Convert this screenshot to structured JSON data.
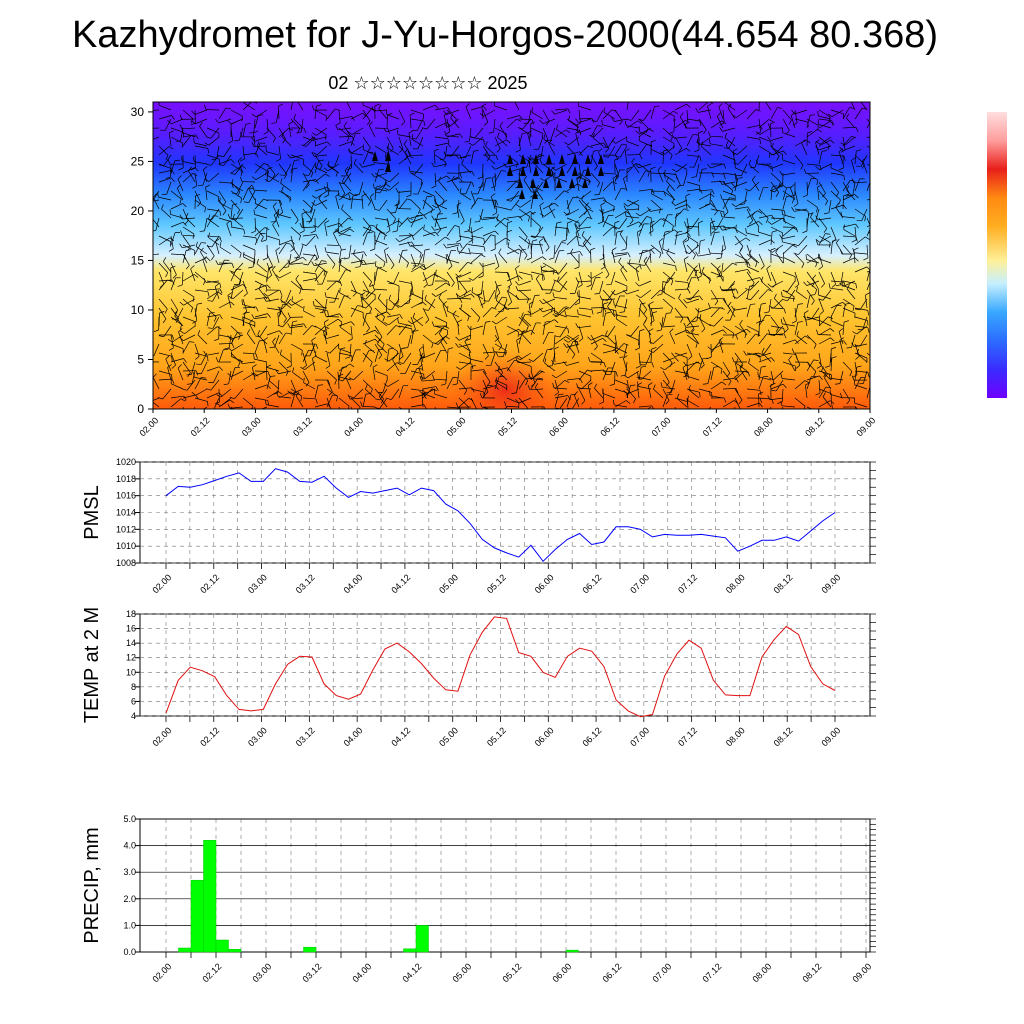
{
  "page": {
    "title": "Kazhydromet for J-Yu-Horgos-2000(44.654 80.368)",
    "subtitle": "02 ☆☆☆☆☆☆☆☆ 2025"
  },
  "colors": {
    "pmsl_line": "#0000ff",
    "temp_line": "#e01010",
    "precip_bar": "#00ff00",
    "colorbar": [
      "#6e00ff",
      "#5a1cff",
      "#3030ff",
      "#2c6cff",
      "#38a8ff",
      "#63d1ff",
      "#c5efff",
      "#fff099",
      "#ffd34d",
      "#ffae21",
      "#ff8a12",
      "#ff5a0a",
      "#e8201a",
      "#ff9d9d",
      "#ffdede"
    ]
  },
  "chart_data": [
    {
      "id": "profile",
      "type": "heatmap",
      "title": "",
      "x_tick_labels": [
        "02.00",
        "02.12",
        "03.00",
        "03.12",
        "04.00",
        "04.12",
        "05.00",
        "05.12",
        "06.00",
        "06.12",
        "07.00",
        "07.12",
        "08.00",
        "08.12",
        "09.00"
      ],
      "y_ticks": [
        0,
        5,
        10,
        15,
        20,
        25,
        30
      ],
      "ylim": [
        0,
        31
      ],
      "colorbar_labels": [],
      "note_visible": "temperature colour field with wind barbs, no printed values"
    },
    {
      "id": "pmsl",
      "type": "line",
      "ylabel": "PMSL",
      "ylim": [
        1008,
        1020
      ],
      "y_ticks": [
        1008,
        1010,
        1012,
        1014,
        1016,
        1018,
        1020
      ],
      "x_tick_labels": [
        "02.00",
        "02.12",
        "03.00",
        "03.12",
        "04.00",
        "04.12",
        "05.00",
        "05.12",
        "06.00",
        "06.12",
        "07.00",
        "07.12",
        "08.00",
        "08.12",
        "09.00"
      ],
      "x": [
        0,
        3,
        6,
        9,
        12,
        15,
        18,
        21,
        24,
        27,
        30,
        33,
        36,
        39,
        42,
        45,
        48,
        51,
        54,
        57,
        60,
        63,
        66,
        69,
        72,
        75,
        78,
        81,
        84,
        87,
        90,
        93,
        96,
        99,
        102,
        105,
        108,
        111,
        114,
        117,
        120,
        123,
        126,
        129,
        132,
        135,
        138,
        141,
        144,
        147,
        150,
        153,
        156,
        159,
        162,
        165
      ],
      "series": [
        {
          "values": [
            1016.0,
            1017.1,
            1017.0,
            1017.3,
            1017.8,
            1018.3,
            1018.7,
            1017.7,
            1017.7,
            1019.2,
            1018.8,
            1017.7,
            1017.6,
            1018.3,
            1016.9,
            1015.8,
            1016.5,
            1016.3,
            1016.6,
            1016.9,
            1016.1,
            1016.9,
            1016.6,
            1015.0,
            1014.2,
            1012.7,
            1010.8,
            1009.8,
            1009.2,
            1008.7,
            1010.1,
            1008.2,
            1009.6,
            1010.8,
            1011.5,
            1010.2,
            1010.5,
            1012.3,
            1012.3,
            1012.0,
            1011.1,
            1011.4,
            1011.3,
            1011.3,
            1011.4,
            1011.2,
            1011.0,
            1009.4,
            1010.0,
            1010.7,
            1010.7,
            1011.1,
            1010.6,
            1011.8,
            1013.0,
            1014.0
          ]
        }
      ]
    },
    {
      "id": "temp",
      "type": "line",
      "ylabel": "TEMP at 2 M",
      "ylim": [
        4,
        18
      ],
      "y_ticks": [
        4,
        6,
        8,
        10,
        12,
        14,
        16,
        18
      ],
      "x_tick_labels": [
        "02.00",
        "02.12",
        "03.00",
        "03.12",
        "04.00",
        "04.12",
        "05.00",
        "05.12",
        "06.00",
        "06.12",
        "07.00",
        "07.12",
        "08.00",
        "08.12",
        "09.00"
      ],
      "x": [
        0,
        3,
        6,
        9,
        12,
        15,
        18,
        21,
        24,
        27,
        30,
        33,
        36,
        39,
        42,
        45,
        48,
        51,
        54,
        57,
        60,
        63,
        66,
        69,
        72,
        75,
        78,
        81,
        84,
        87,
        90,
        93,
        96,
        99,
        102,
        105,
        108,
        111,
        114,
        117,
        120,
        123,
        126,
        129,
        132,
        135,
        138,
        141,
        144,
        147,
        150,
        153,
        156,
        159,
        162,
        165
      ],
      "series": [
        {
          "values": [
            4.4,
            8.9,
            10.7,
            10.2,
            9.4,
            6.8,
            4.9,
            4.7,
            4.9,
            8.4,
            11.1,
            12.2,
            12.1,
            8.4,
            6.8,
            6.3,
            7.0,
            10.3,
            13.2,
            14.0,
            12.8,
            11.2,
            9.2,
            7.6,
            7.4,
            12.4,
            15.5,
            17.6,
            17.4,
            12.7,
            12.2,
            10.0,
            9.3,
            12.2,
            13.3,
            12.9,
            10.8,
            6.2,
            4.7,
            3.9,
            4.2,
            9.5,
            12.5,
            14.4,
            13.3,
            8.9,
            6.9,
            6.8,
            6.8,
            12.1,
            14.5,
            16.3,
            15.2,
            10.8,
            8.4,
            7.5
          ]
        }
      ]
    },
    {
      "id": "precip",
      "type": "bar",
      "ylabel": "PRECIP, mm",
      "ylim": [
        0,
        5
      ],
      "y_tick_labels": [
        "0.0",
        "1.0",
        "2.0",
        "3.0",
        "4.0",
        "5.0"
      ],
      "x_tick_labels": [
        "02.00",
        "02.12",
        "03.00",
        "03.12",
        "04.00",
        "04.12",
        "05.00",
        "05.12",
        "06.00",
        "06.12",
        "07.00",
        "07.12",
        "08.00",
        "08.12",
        "09.00"
      ],
      "bars": [
        {
          "x": 4.5,
          "value": 0.15
        },
        {
          "x": 7.5,
          "value": 2.7
        },
        {
          "x": 10.5,
          "value": 4.2
        },
        {
          "x": 13.5,
          "value": 0.45
        },
        {
          "x": 16.5,
          "value": 0.1
        },
        {
          "x": 34.5,
          "value": 0.18
        },
        {
          "x": 58.5,
          "value": 0.12
        },
        {
          "x": 61.5,
          "value": 1.0
        },
        {
          "x": 97.5,
          "value": 0.07
        }
      ]
    }
  ]
}
